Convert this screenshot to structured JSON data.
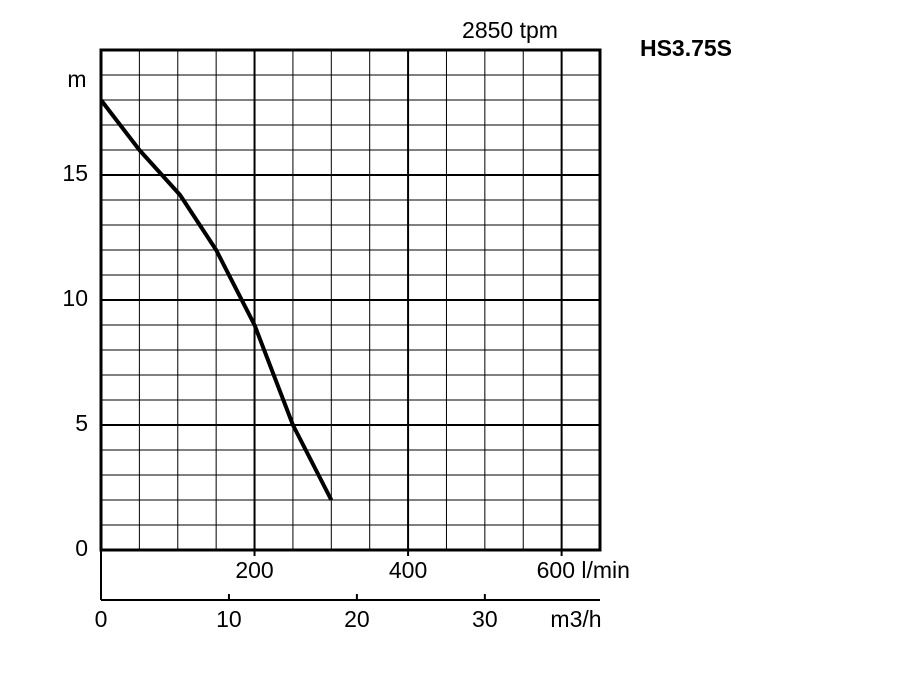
{
  "chart_data": {
    "type": "line",
    "title": "2850 tpm",
    "model": "HS3.75S",
    "y_label": "m",
    "x2_label": "m3/h",
    "x": [
      0,
      50,
      103,
      150,
      200,
      250,
      300
    ],
    "series": [
      {
        "color": "#000000",
        "values": [
          18,
          16,
          14.2,
          12,
          9,
          5,
          2
        ]
      }
    ],
    "xlim": [
      0,
      650
    ],
    "xticks": [
      200,
      400,
      {
        "value": 600,
        "label": "600 l/min"
      }
    ],
    "x2lim": [
      0,
      39
    ],
    "x2ticks": [
      0,
      10,
      20,
      30
    ],
    "ylim": [
      0,
      20
    ],
    "yticks": [
      0,
      5,
      10,
      15
    ],
    "grid": true,
    "x_grid_step": 50,
    "y_grid_step": 1
  }
}
